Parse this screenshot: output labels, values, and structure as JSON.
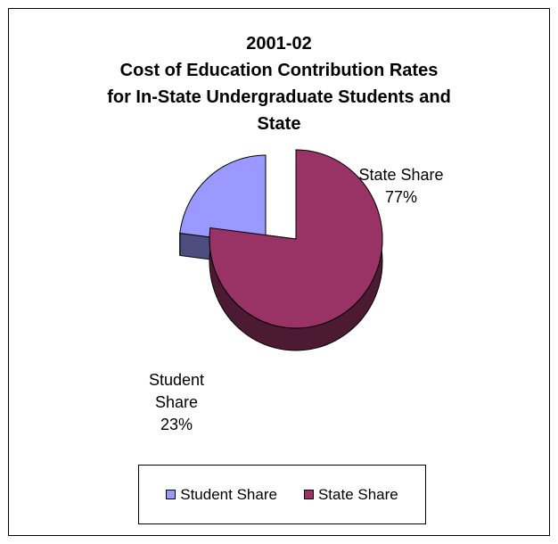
{
  "chart_data": {
    "type": "pie",
    "title_lines": [
      "2001-02",
      "Cost of Education Contribution Rates",
      "for In-State Undergraduate Students and",
      "State"
    ],
    "slices": [
      {
        "name": "Student Share",
        "value": 23,
        "label_lines": [
          "Student",
          "Share",
          "23%"
        ],
        "color": "#9999ff",
        "side_color": "#4d4d80",
        "exploded": true
      },
      {
        "name": "State Share",
        "value": 77,
        "label_lines": [
          "State Share",
          "77%"
        ],
        "color": "#993366",
        "side_color": "#4d1a33",
        "exploded": false
      }
    ],
    "legend": [
      "Student Share",
      "State Share"
    ],
    "legend_placement": "bottom",
    "style": "3d exploded pie"
  }
}
